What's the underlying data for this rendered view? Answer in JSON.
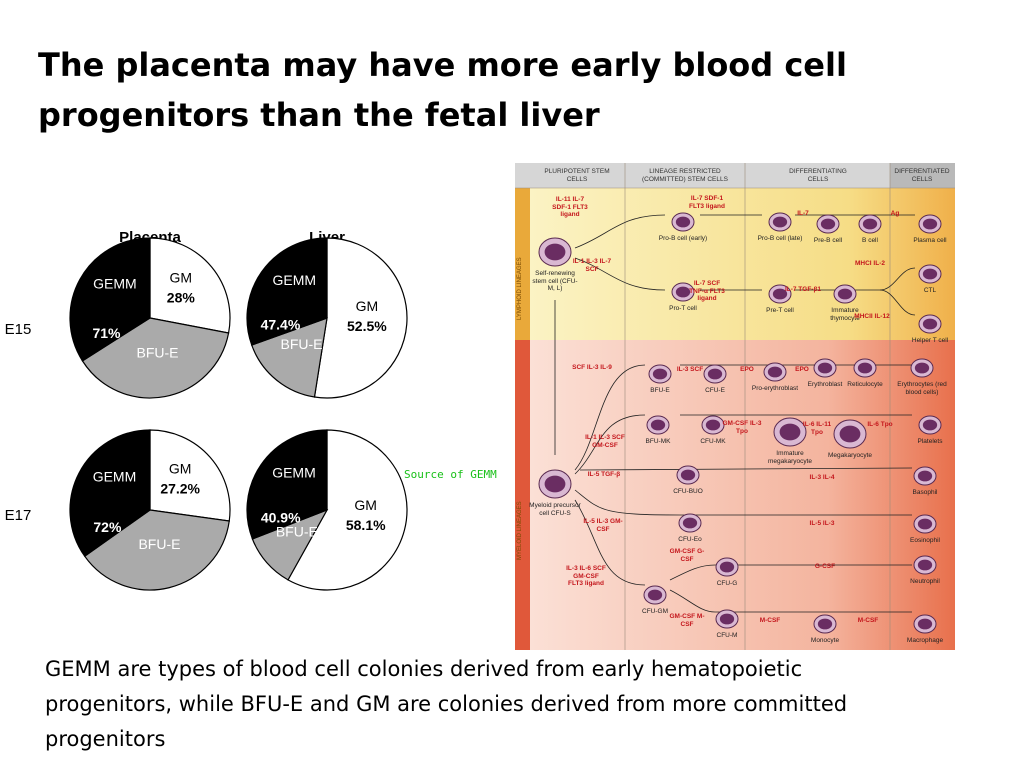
{
  "title": "The placenta may have more early blood cell progenitors than the fetal liver",
  "columns": [
    "Placenta",
    "Liver"
  ],
  "rows": [
    "E15",
    "E17"
  ],
  "charts": [
    {
      "type": "pie",
      "categories": [
        "GM",
        "BFU-E",
        "GEMM"
      ],
      "values": [
        28,
        38,
        34
      ],
      "value_labels": [
        "28%",
        null,
        null
      ],
      "colors": [
        "#ffffff",
        "#aaaaaa",
        "#000000"
      ],
      "annotation": "71%"
    },
    {
      "type": "pie",
      "categories": [
        "GM",
        "BFU-E",
        "GEMM"
      ],
      "values": [
        52.5,
        17,
        30.5
      ],
      "value_labels": [
        "52.5%",
        null,
        null
      ],
      "colors": [
        "#ffffff",
        "#aaaaaa",
        "#000000"
      ],
      "annotation": "47.4%"
    },
    {
      "type": "pie",
      "categories": [
        "GM",
        "BFU-E",
        "GEMM"
      ],
      "values": [
        27.2,
        38,
        34.8
      ],
      "value_labels": [
        "27.2%",
        null,
        null
      ],
      "colors": [
        "#ffffff",
        "#aaaaaa",
        "#000000"
      ],
      "annotation": "72%"
    },
    {
      "type": "pie",
      "categories": [
        "GM",
        "BFU-E",
        "GEMM"
      ],
      "values": [
        58.1,
        11,
        30.9
      ],
      "value_labels": [
        "58.1%",
        null,
        null
      ],
      "colors": [
        "#ffffff",
        "#aaaaaa",
        "#000000"
      ],
      "annotation": "40.9%"
    }
  ],
  "diagram": {
    "headers": [
      "PLURIPOTENT STEM CELLS",
      "LINEAGE RESTRICTED (COMMITTED) STEM CELLS",
      "DIFFERENTIATING CELLS",
      "DIFFERENTIATED CELLS"
    ],
    "side_labels": [
      "LYMPHOID LINEAGES",
      "MYELOID LINEAGES"
    ],
    "cells": [
      "Self-renewing stem cell (CFU-M, L)",
      "Pro-B cell (early)",
      "Pro-T cell",
      "Pro-B cell (late)",
      "Pre-B cell",
      "B cell",
      "Plasma cell",
      "Pre-T cell",
      "Immature thymocyte",
      "CTL",
      "Helper T cell",
      "BFU-E",
      "CFU-E",
      "Pro-erythroblast",
      "Erythroblast",
      "Reticulocyte",
      "Erythrocytes (red blood cells)",
      "BFU-MK",
      "CFU-MK",
      "Immature megakaryocyte",
      "Megakaryocyte",
      "Platelets",
      "Myeloid precursor cell CFU-S",
      "CFU-BUO",
      "Basophil",
      "CFU-Eo",
      "Eosinophil",
      "CFU-G",
      "Neutrophil",
      "CFU-GM",
      "CFU-M",
      "Monocyte",
      "Macrophage"
    ],
    "factors": [
      "IL-11 IL-7 SDF-1 FLT3 ligand",
      "IL-7 SDF-1 FLT3 ligand",
      "IL-7",
      "Ag",
      "IL-1 IL-3 IL-7 SCF",
      "IL-7 SCF TNF-α FLT3 ligand",
      "IL-7 TGF-β1",
      "MHCI IL-2",
      "MHCII IL-12",
      "SCF IL-3 IL-9",
      "IL-3 SCF",
      "EPO",
      "EPO",
      "IL-1 IL-3 SCF GM-CSF",
      "GM-CSF IL-3 Tpo",
      "IL-6 IL-11 Tpo",
      "IL-6 Tpo",
      "IL-5 TGF-β",
      "IL-3 IL-4",
      "IL-5 IL-3 GM-CSF",
      "IL-5 IL-3",
      "GM-CSF G-CSF",
      "G-CSF",
      "IL-3 IL-6 SCF GM-CSF FLT3 ligand",
      "GM-CSF M-CSF",
      "M-CSF",
      "M-CSF"
    ],
    "annotation": "Source of GEMM"
  },
  "caption": "GEMM are types of blood cell colonies derived from early hematopoietic progenitors, while BFU-E and GM are colonies derived from more committed progenitors"
}
